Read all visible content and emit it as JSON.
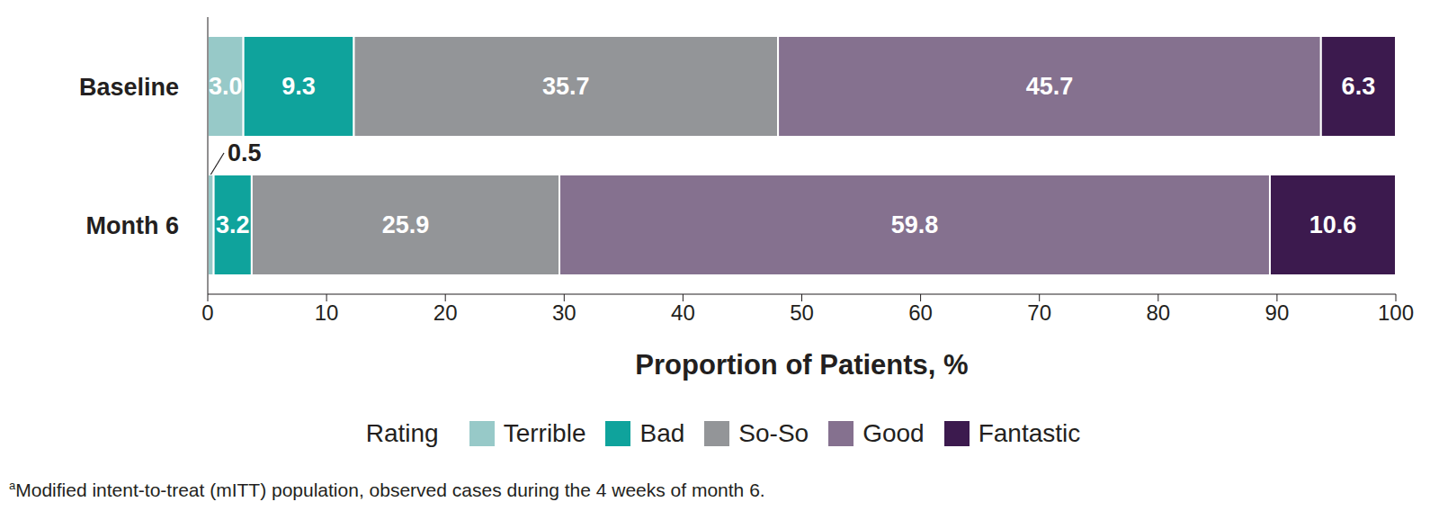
{
  "chart_data": {
    "type": "bar",
    "orientation": "horizontal",
    "stacked": true,
    "data_labels": true,
    "legend": "bottom",
    "legend_title": "Rating",
    "categories": [
      "Baseline",
      "Month 6"
    ],
    "series": [
      {
        "name": "Terrible",
        "color": "#97c9c8",
        "values": [
          3.0,
          0.5
        ],
        "value_labels": [
          "3.0",
          "0.5"
        ]
      },
      {
        "name": "Bad",
        "color": "#0fa39c",
        "values": [
          9.3,
          3.2
        ]
      },
      {
        "name": "So-So",
        "color": "#939598",
        "values": [
          35.7,
          25.9
        ]
      },
      {
        "name": "Good",
        "color": "#85718f",
        "values": [
          45.7,
          59.8
        ]
      },
      {
        "name": "Fantastic",
        "color": "#3c1a4e",
        "values": [
          6.3,
          10.6
        ]
      }
    ],
    "x_label": "Proportion of Patients, %",
    "xlim": [
      0,
      100
    ],
    "xticks": [
      0,
      10,
      20,
      30,
      40,
      50,
      60,
      70,
      80,
      90,
      100
    ],
    "footnote_marker": "a",
    "footnote": "Modified intent-to-treat (mITT) population, observed cases during the 4 weeks of month 6."
  }
}
